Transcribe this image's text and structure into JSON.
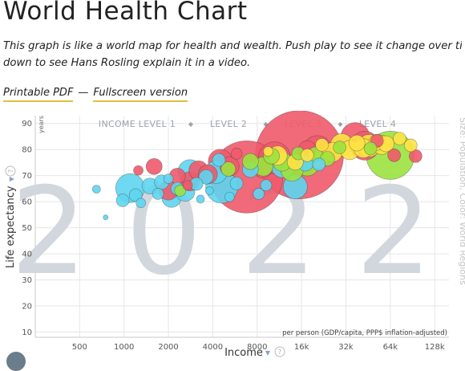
{
  "header": {
    "title": "World Health Chart",
    "intro_line1": "This graph is like a world map for health and wealth. Push play to see it change over time. Scr",
    "intro_line2": "down to see Hans Rosling explain it in a video.",
    "link_pdf": "Printable PDF",
    "separator": "—",
    "link_fullscreen": "Fullscreen version"
  },
  "chart_data": {
    "type": "scatter",
    "year": "2022",
    "income_levels": [
      "INCOME LEVEL 1",
      "LEVEL 2",
      "LEVEL 3",
      "LEVEL 4"
    ],
    "level_sep": "◆",
    "xlabel": "Income",
    "xnote": "per person (GDP/capita, PPP$ inflation-adjusted)",
    "ylabel": "Life expectancy",
    "yunit": "years",
    "size_label": "Size: Population, Color: World Regions",
    "x_scale": "log",
    "xlim": [
      250,
      160000
    ],
    "ylim": [
      8,
      93
    ],
    "x_ticks": [
      500,
      1000,
      2000,
      4000,
      8000,
      16000,
      32000,
      64000,
      128000
    ],
    "x_tick_labels": [
      "500",
      "1000",
      "2000",
      "4000",
      "8000",
      "16k",
      "32k",
      "64k",
      "128k"
    ],
    "y_ticks": [
      10,
      20,
      30,
      40,
      50,
      60,
      70,
      80,
      90
    ],
    "grid": true,
    "colors": {
      "africa": "#5ed5f0",
      "asia": "#f05a6c",
      "americas": "#9be23f",
      "europe": "#ffe244",
      "grid": "#e6e6e6",
      "year_text": "#d2d7de"
    },
    "series": [
      {
        "region": "africa",
        "color": "#5ed5f0",
        "points": [
          [
            650,
            64.8,
            5
          ],
          [
            750,
            54,
            3
          ],
          [
            980,
            60.5,
            8
          ],
          [
            1100,
            65.2,
            18
          ],
          [
            1200,
            62.5,
            8
          ],
          [
            1300,
            59.5,
            6
          ],
          [
            1500,
            66,
            10
          ],
          [
            1700,
            63,
            7
          ],
          [
            1800,
            67.5,
            9
          ],
          [
            2100,
            61.5,
            12
          ],
          [
            2300,
            65,
            8
          ],
          [
            2600,
            63.8,
            12
          ],
          [
            2800,
            71.5,
            15
          ],
          [
            3100,
            66.8,
            8
          ],
          [
            3300,
            61,
            5
          ],
          [
            3600,
            69.5,
            9
          ],
          [
            4200,
            71.3,
            14
          ],
          [
            4600,
            65.6,
            20
          ],
          [
            5200,
            61.8,
            6
          ],
          [
            5800,
            67,
            8
          ],
          [
            7200,
            72.4,
            10
          ],
          [
            9200,
            66.3,
            7
          ],
          [
            12000,
            73.8,
            15
          ],
          [
            14500,
            65.7,
            15
          ],
          [
            17000,
            74.8,
            10
          ],
          [
            21000,
            74.3,
            8
          ],
          [
            2000,
            68.8,
            6
          ],
          [
            3800,
            64.2,
            5
          ],
          [
            4400,
            76,
            8
          ],
          [
            8200,
            63,
            7
          ]
        ]
      },
      {
        "region": "asia",
        "color": "#f05a6c",
        "points": [
          [
            1250,
            72,
            6
          ],
          [
            1600,
            73.5,
            10
          ],
          [
            2000,
            64.3,
            12
          ],
          [
            2300,
            69.8,
            10
          ],
          [
            2800,
            67.8,
            12
          ],
          [
            3200,
            72,
            12
          ],
          [
            3700,
            70.5,
            12
          ],
          [
            4500,
            75.5,
            15
          ],
          [
            5200,
            73.5,
            12
          ],
          [
            6800,
            69.5,
            45
          ],
          [
            8700,
            72.8,
            12
          ],
          [
            10500,
            76.8,
            20
          ],
          [
            15500,
            78,
            55
          ],
          [
            20500,
            79.8,
            18
          ],
          [
            37000,
            84.8,
            18
          ],
          [
            43000,
            81.5,
            18
          ],
          [
            52000,
            83.3,
            8
          ],
          [
            68000,
            77.8,
            8
          ],
          [
            95000,
            77.5,
            8
          ],
          [
            5800,
            78.4,
            7
          ],
          [
            17500,
            80,
            11
          ],
          [
            2700,
            66.3,
            6
          ]
        ]
      },
      {
        "region": "americas",
        "color": "#9be23f",
        "points": [
          [
            2400,
            64.2,
            7
          ],
          [
            5100,
            72.5,
            9
          ],
          [
            7200,
            75.4,
            10
          ],
          [
            8800,
            73.5,
            12
          ],
          [
            10000,
            77.5,
            10
          ],
          [
            11800,
            75.4,
            12
          ],
          [
            13800,
            72.2,
            14
          ],
          [
            15200,
            78.5,
            8
          ],
          [
            17500,
            74.5,
            15
          ],
          [
            19800,
            78.2,
            9
          ],
          [
            24000,
            76.5,
            9
          ],
          [
            29000,
            80.8,
            8
          ],
          [
            47000,
            80.4,
            8
          ],
          [
            64000,
            77.8,
            30
          ]
        ]
      },
      {
        "region": "europe",
        "color": "#ffe244",
        "points": [
          [
            11000,
            77.7,
            12
          ],
          [
            14500,
            75.2,
            10
          ],
          [
            21000,
            76.5,
            12
          ],
          [
            26000,
            79,
            12
          ],
          [
            30000,
            81.8,
            14
          ],
          [
            34000,
            79.8,
            12
          ],
          [
            38000,
            82.5,
            10
          ],
          [
            42000,
            80.5,
            12
          ],
          [
            46000,
            81.5,
            14
          ],
          [
            52000,
            82.8,
            10
          ],
          [
            56000,
            81.8,
            12
          ],
          [
            60000,
            82.2,
            10
          ],
          [
            74000,
            84.2,
            8
          ],
          [
            88000,
            81.6,
            8
          ],
          [
            17500,
            77.8,
            8
          ],
          [
            22000,
            81.8,
            8
          ],
          [
            9500,
            79.3,
            6
          ]
        ]
      }
    ]
  }
}
